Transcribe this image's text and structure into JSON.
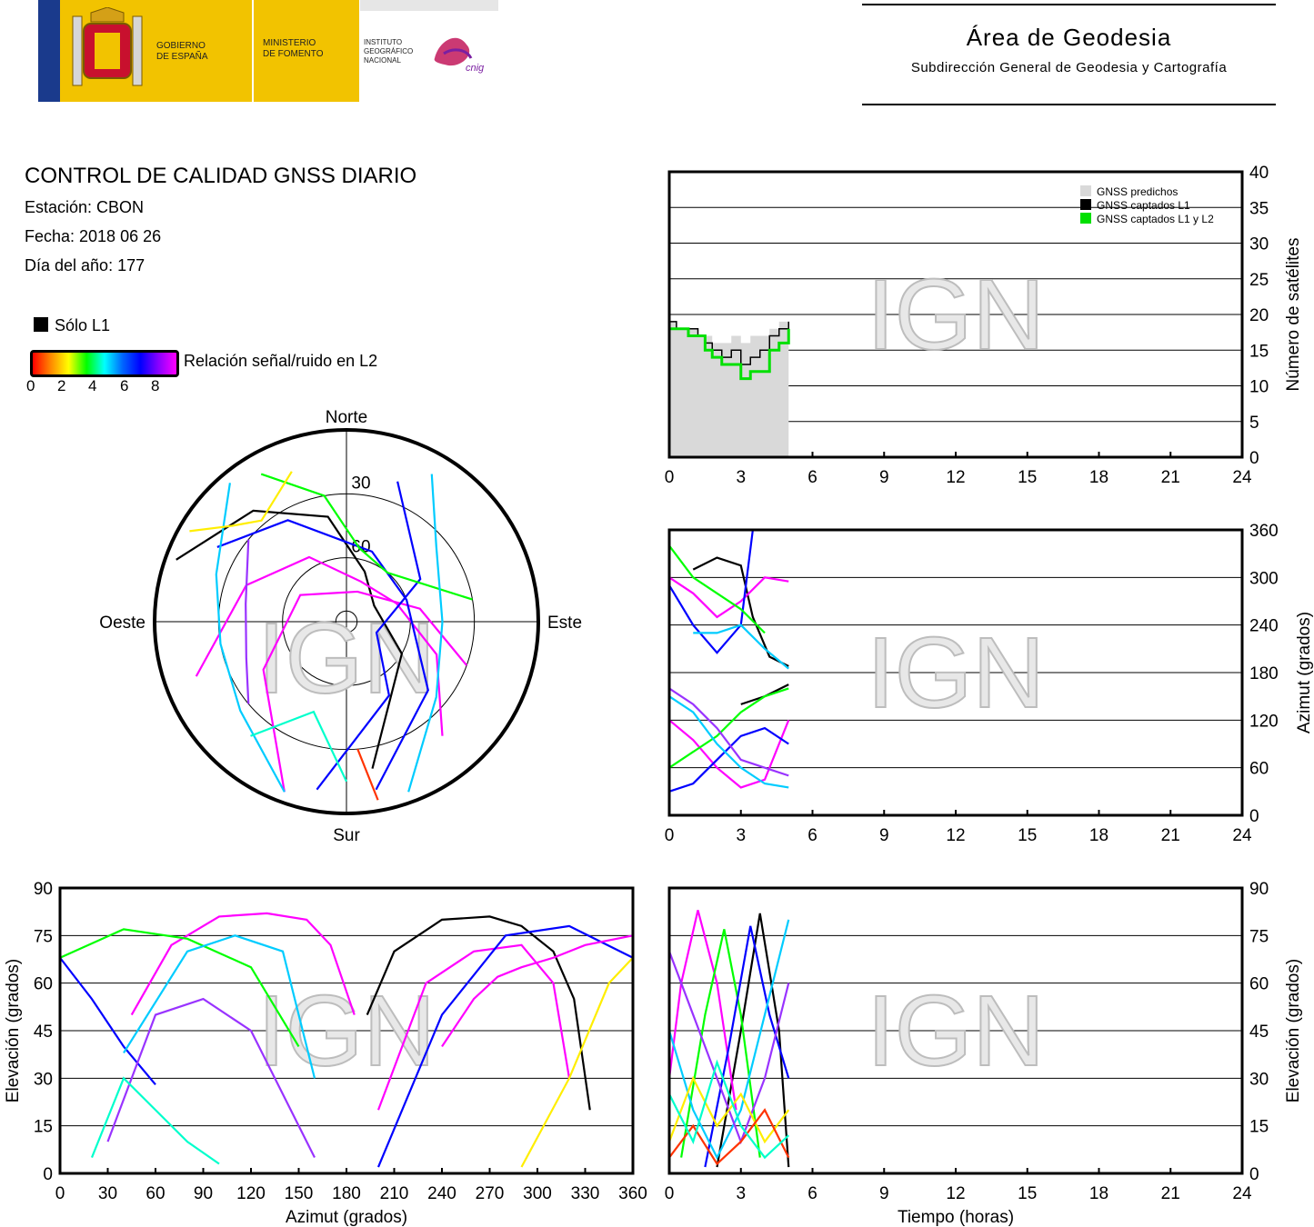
{
  "header": {
    "gobierno": [
      "GOBIERNO",
      "DE ESPAÑA"
    ],
    "ministerio": [
      "MINISTERIO",
      "DE FOMENTO"
    ],
    "instituto": [
      "INSTITUTO",
      "GEOGRÁFICO",
      "NACIONAL"
    ],
    "cnig": "cnig",
    "area_title": "Área de Geodesia",
    "area_subtitle": "Subdirección General de Geodesia y Cartografía",
    "colors": {
      "brand_yellow": "#f2c300",
      "brand_blue": "#1a3a8c",
      "cnig_magenta": "#c2185b"
    }
  },
  "report": {
    "title": "CONTROL DE CALIDAD GNSS DIARIO",
    "station": "Estación: CBON",
    "date": "Fecha: 2018 06 26",
    "doy": "Día del año: 177"
  },
  "legend": {
    "l1_only": "Sólo L1",
    "snr_label": "Relación señal/ruido en L2",
    "snr_ticks": [
      "0",
      "2",
      "4",
      "6",
      "8"
    ]
  },
  "watermark": "IGN",
  "chart_data": [
    {
      "id": "sat-count",
      "type": "area",
      "ylabel": "Número de satélites",
      "xlim": [
        0,
        24
      ],
      "ylim": [
        0,
        40
      ],
      "xticks": [
        "0",
        "3",
        "6",
        "9",
        "12",
        "15",
        "18",
        "21",
        "24"
      ],
      "yticks": [
        "0",
        "5",
        "10",
        "15",
        "20",
        "25",
        "30",
        "35",
        "40"
      ],
      "legend_position": "top-right",
      "grid": true,
      "series": [
        {
          "name": "GNSS predichos",
          "color": "#d9d9d9",
          "x": [
            0,
            0.3,
            0.8,
            1.2,
            1.5,
            1.8,
            2.2,
            2.6,
            3.0,
            3.4,
            3.8,
            4.2,
            4.6,
            5.0
          ],
          "y": [
            19,
            18,
            18,
            17,
            17,
            16,
            16,
            17,
            16,
            17,
            17,
            18,
            19,
            20
          ]
        },
        {
          "name": "GNSS captados L1",
          "color": "#000000",
          "x": [
            0,
            0.3,
            0.8,
            1.2,
            1.5,
            1.8,
            2.2,
            2.6,
            3.0,
            3.4,
            3.8,
            4.2,
            4.6,
            5.0
          ],
          "y": [
            19,
            18,
            18,
            17,
            16,
            15,
            14,
            15,
            13,
            14,
            15,
            17,
            18,
            19
          ]
        },
        {
          "name": "GNSS captados L1 y L2",
          "color": "#00e000",
          "x": [
            0,
            0.3,
            0.8,
            1.2,
            1.5,
            1.8,
            2.2,
            2.6,
            3.0,
            3.4,
            3.8,
            4.2,
            4.6,
            5.0
          ],
          "y": [
            18,
            18,
            17,
            17,
            15,
            14,
            13,
            13,
            11,
            12,
            12,
            15,
            16,
            18
          ]
        }
      ]
    },
    {
      "id": "azimuth-time",
      "type": "scatter",
      "ylabel": "Azimut (grados)",
      "xlim": [
        0,
        24
      ],
      "ylim": [
        0,
        360
      ],
      "xticks": [
        "0",
        "3",
        "6",
        "9",
        "12",
        "15",
        "18",
        "21",
        "24"
      ],
      "yticks": [
        "0",
        "60",
        "120",
        "180",
        "240",
        "300",
        "360"
      ],
      "grid": true,
      "tracks": [
        {
          "color": "#000000",
          "x": [
            1.0,
            2.0,
            3.0,
            3.5,
            4.2,
            5.0
          ],
          "y": [
            310,
            325,
            315,
            250,
            200,
            188
          ]
        },
        {
          "color": "#ff00ff",
          "x": [
            0.0,
            1.0,
            2.0,
            3.0,
            4.0,
            5.0
          ],
          "y": [
            300,
            280,
            250,
            270,
            300,
            295
          ]
        },
        {
          "color": "#0000ff",
          "x": [
            0.0,
            1.0,
            2.0,
            3.0,
            3.5
          ],
          "y": [
            290,
            240,
            205,
            240,
            360
          ]
        },
        {
          "color": "#00ff00",
          "x": [
            0.0,
            1.0,
            2.0,
            3.0,
            4.0
          ],
          "y": [
            340,
            300,
            280,
            260,
            230
          ]
        },
        {
          "color": "#00ccff",
          "x": [
            1.0,
            2.0,
            3.0,
            4.0,
            5.0
          ],
          "y": [
            230,
            230,
            240,
            210,
            185
          ]
        },
        {
          "color": "#000000",
          "x": [
            3.0,
            4.0,
            5.0
          ],
          "y": [
            140,
            150,
            165
          ]
        },
        {
          "color": "#ff00ff",
          "x": [
            0.0,
            1.0,
            2.0,
            3.0,
            4.0,
            5.0
          ],
          "y": [
            120,
            95,
            60,
            35,
            45,
            120
          ]
        },
        {
          "color": "#0000ff",
          "x": [
            0.0,
            1.0,
            2.0,
            3.0,
            4.0,
            5.0
          ],
          "y": [
            30,
            40,
            70,
            100,
            110,
            90
          ]
        },
        {
          "color": "#00ff00",
          "x": [
            0.0,
            1.0,
            2.0,
            3.0,
            4.0,
            5.0
          ],
          "y": [
            60,
            80,
            100,
            130,
            150,
            160
          ]
        },
        {
          "color": "#00ccff",
          "x": [
            0.0,
            1.0,
            2.0,
            3.0,
            4.0,
            5.0
          ],
          "y": [
            150,
            130,
            90,
            60,
            40,
            35
          ]
        },
        {
          "color": "#9933ff",
          "x": [
            0.0,
            1.0,
            2.0,
            3.0,
            4.0,
            5.0
          ],
          "y": [
            160,
            140,
            110,
            70,
            60,
            50
          ]
        }
      ]
    },
    {
      "id": "elevation-azimuth",
      "type": "scatter",
      "xlabel": "Azimut (grados)",
      "ylabel": "Elevación (grados)",
      "xlim": [
        0,
        360
      ],
      "ylim": [
        0,
        90
      ],
      "xticks": [
        "0",
        "30",
        "60",
        "90",
        "120",
        "150",
        "180",
        "210",
        "240",
        "270",
        "300",
        "330",
        "360"
      ],
      "yticks": [
        "0",
        "15",
        "30",
        "45",
        "60",
        "75",
        "90"
      ],
      "grid": true,
      "tracks": [
        {
          "color": "#000000",
          "x": [
            193,
            210,
            240,
            270,
            290,
            310,
            323,
            333
          ],
          "y": [
            50,
            70,
            80,
            81,
            78,
            70,
            55,
            20
          ]
        },
        {
          "color": "#ff00ff",
          "x": [
            45,
            70,
            100,
            130,
            155,
            170,
            185
          ],
          "y": [
            50,
            72,
            81,
            82,
            80,
            72,
            50
          ]
        },
        {
          "color": "#ff00ff",
          "x": [
            200,
            230,
            260,
            290,
            310,
            320
          ],
          "y": [
            20,
            60,
            70,
            72,
            60,
            30
          ]
        },
        {
          "color": "#0000ff",
          "x": [
            0,
            20,
            40,
            60
          ],
          "y": [
            68,
            55,
            40,
            28
          ]
        },
        {
          "color": "#0000ff",
          "x": [
            200,
            240,
            280,
            320,
            360
          ],
          "y": [
            2,
            50,
            75,
            78,
            68
          ]
        },
        {
          "color": "#00ff00",
          "x": [
            0,
            40,
            80,
            120,
            150
          ],
          "y": [
            68,
            77,
            74,
            65,
            40
          ]
        },
        {
          "color": "#00ccff",
          "x": [
            40,
            80,
            110,
            140,
            160
          ],
          "y": [
            38,
            70,
            75,
            70,
            30
          ]
        },
        {
          "color": "#9933ff",
          "x": [
            30,
            60,
            90,
            120,
            160
          ],
          "y": [
            10,
            50,
            55,
            45,
            5
          ]
        },
        {
          "color": "#ffee00",
          "x": [
            290,
            320,
            345,
            360
          ],
          "y": [
            2,
            30,
            60,
            68
          ]
        },
        {
          "color": "#00ffcc",
          "x": [
            20,
            40,
            60,
            80,
            100
          ],
          "y": [
            5,
            30,
            20,
            10,
            3
          ]
        },
        {
          "color": "#ff00ff",
          "x": [
            240,
            260,
            275,
            290,
            310,
            330,
            360
          ],
          "y": [
            40,
            55,
            62,
            65,
            68,
            72,
            75
          ]
        }
      ]
    },
    {
      "id": "elevation-time",
      "type": "scatter",
      "xlabel": "Tiempo (horas)",
      "ylabel": "Elevación (grados)",
      "xlim": [
        0,
        24
      ],
      "ylim": [
        0,
        90
      ],
      "xticks": [
        "0",
        "3",
        "6",
        "9",
        "12",
        "15",
        "18",
        "21",
        "24"
      ],
      "yticks": [
        "0",
        "15",
        "30",
        "45",
        "60",
        "75",
        "90"
      ],
      "grid": true,
      "tracks": [
        {
          "color": "#000000",
          "x": [
            2.0,
            3.0,
            3.8,
            4.6,
            5.0
          ],
          "y": [
            2,
            45,
            82,
            45,
            2
          ]
        },
        {
          "color": "#ff00ff",
          "x": [
            0.0,
            0.5,
            1.2,
            2.0,
            2.8
          ],
          "y": [
            30,
            60,
            83,
            60,
            20
          ]
        },
        {
          "color": "#00ff00",
          "x": [
            0.5,
            1.5,
            2.3,
            3.0,
            3.8
          ],
          "y": [
            5,
            50,
            77,
            50,
            5
          ]
        },
        {
          "color": "#0000ff",
          "x": [
            1.5,
            2.5,
            3.4,
            4.2,
            5.0
          ],
          "y": [
            2,
            40,
            78,
            50,
            30
          ]
        },
        {
          "color": "#00ccff",
          "x": [
            0.0,
            1.0,
            2.0,
            3.0,
            4.0,
            5.0
          ],
          "y": [
            45,
            20,
            5,
            20,
            50,
            80
          ]
        },
        {
          "color": "#9933ff",
          "x": [
            0.0,
            1.0,
            2.0,
            3.0,
            4.0,
            5.0
          ],
          "y": [
            70,
            50,
            30,
            10,
            30,
            60
          ]
        },
        {
          "color": "#ffee00",
          "x": [
            0.0,
            1.0,
            2.0,
            3.0,
            4.0,
            5.0
          ],
          "y": [
            10,
            30,
            15,
            25,
            10,
            20
          ]
        },
        {
          "color": "#ff3300",
          "x": [
            0.0,
            1.0,
            2.0,
            3.0,
            4.0,
            5.0
          ],
          "y": [
            5,
            15,
            3,
            10,
            20,
            5
          ]
        },
        {
          "color": "#00ffcc",
          "x": [
            0.0,
            1.0,
            2.0,
            3.0,
            4.0,
            5.0
          ],
          "y": [
            25,
            10,
            35,
            15,
            5,
            12
          ]
        }
      ]
    },
    {
      "id": "skyplot",
      "type": "scatter",
      "compass": {
        "north": "Norte",
        "south": "Sur",
        "east": "Este",
        "west": "Oeste"
      },
      "ring_labels": [
        "30",
        "60"
      ],
      "rings_elevation": [
        0,
        30,
        60,
        85
      ],
      "tracks": [
        {
          "color": "#000000",
          "az": [
            290,
            320,
            350,
            20,
            60,
            120,
            170
          ],
          "el": [
            5,
            22,
            40,
            65,
            75,
            60,
            20
          ]
        },
        {
          "color": "#ff00ff",
          "az": [
            250,
            290,
            330,
            20,
            70,
            110,
            140
          ],
          "el": [
            15,
            40,
            55,
            70,
            65,
            45,
            20
          ]
        },
        {
          "color": "#ff00ff",
          "az": [
            200,
            240,
            300,
            20,
            80,
            110
          ],
          "el": [
            5,
            45,
            65,
            75,
            55,
            30
          ]
        },
        {
          "color": "#0000ff",
          "az": [
            300,
            330,
            20,
            70,
            130,
            170
          ],
          "el": [
            20,
            35,
            55,
            60,
            40,
            10
          ]
        },
        {
          "color": "#0000ff",
          "az": [
            20,
            60,
            110,
            150,
            190
          ],
          "el": [
            20,
            50,
            75,
            50,
            10
          ]
        },
        {
          "color": "#00ff00",
          "az": [
            330,
            350,
            10,
            40,
            80
          ],
          "el": [
            10,
            30,
            55,
            60,
            30
          ]
        },
        {
          "color": "#00ccff",
          "az": [
            30,
            50,
            90,
            130,
            160
          ],
          "el": [
            10,
            35,
            45,
            35,
            5
          ]
        },
        {
          "color": "#00ccff",
          "az": [
            200,
            230,
            260,
            290,
            320
          ],
          "el": [
            5,
            25,
            30,
            25,
            5
          ]
        },
        {
          "color": "#9933ff",
          "az": [
            230,
            250,
            280,
            310
          ],
          "el": [
            30,
            40,
            42,
            30
          ]
        },
        {
          "color": "#ffee00",
          "az": [
            300,
            310,
            320,
            340
          ],
          "el": [
            5,
            20,
            28,
            15
          ]
        },
        {
          "color": "#00ffcc",
          "az": [
            180,
            200,
            220
          ],
          "el": [
            15,
            45,
            20
          ]
        },
        {
          "color": "#ff3300",
          "az": [
            170,
            175
          ],
          "el": [
            5,
            30
          ]
        }
      ]
    }
  ]
}
